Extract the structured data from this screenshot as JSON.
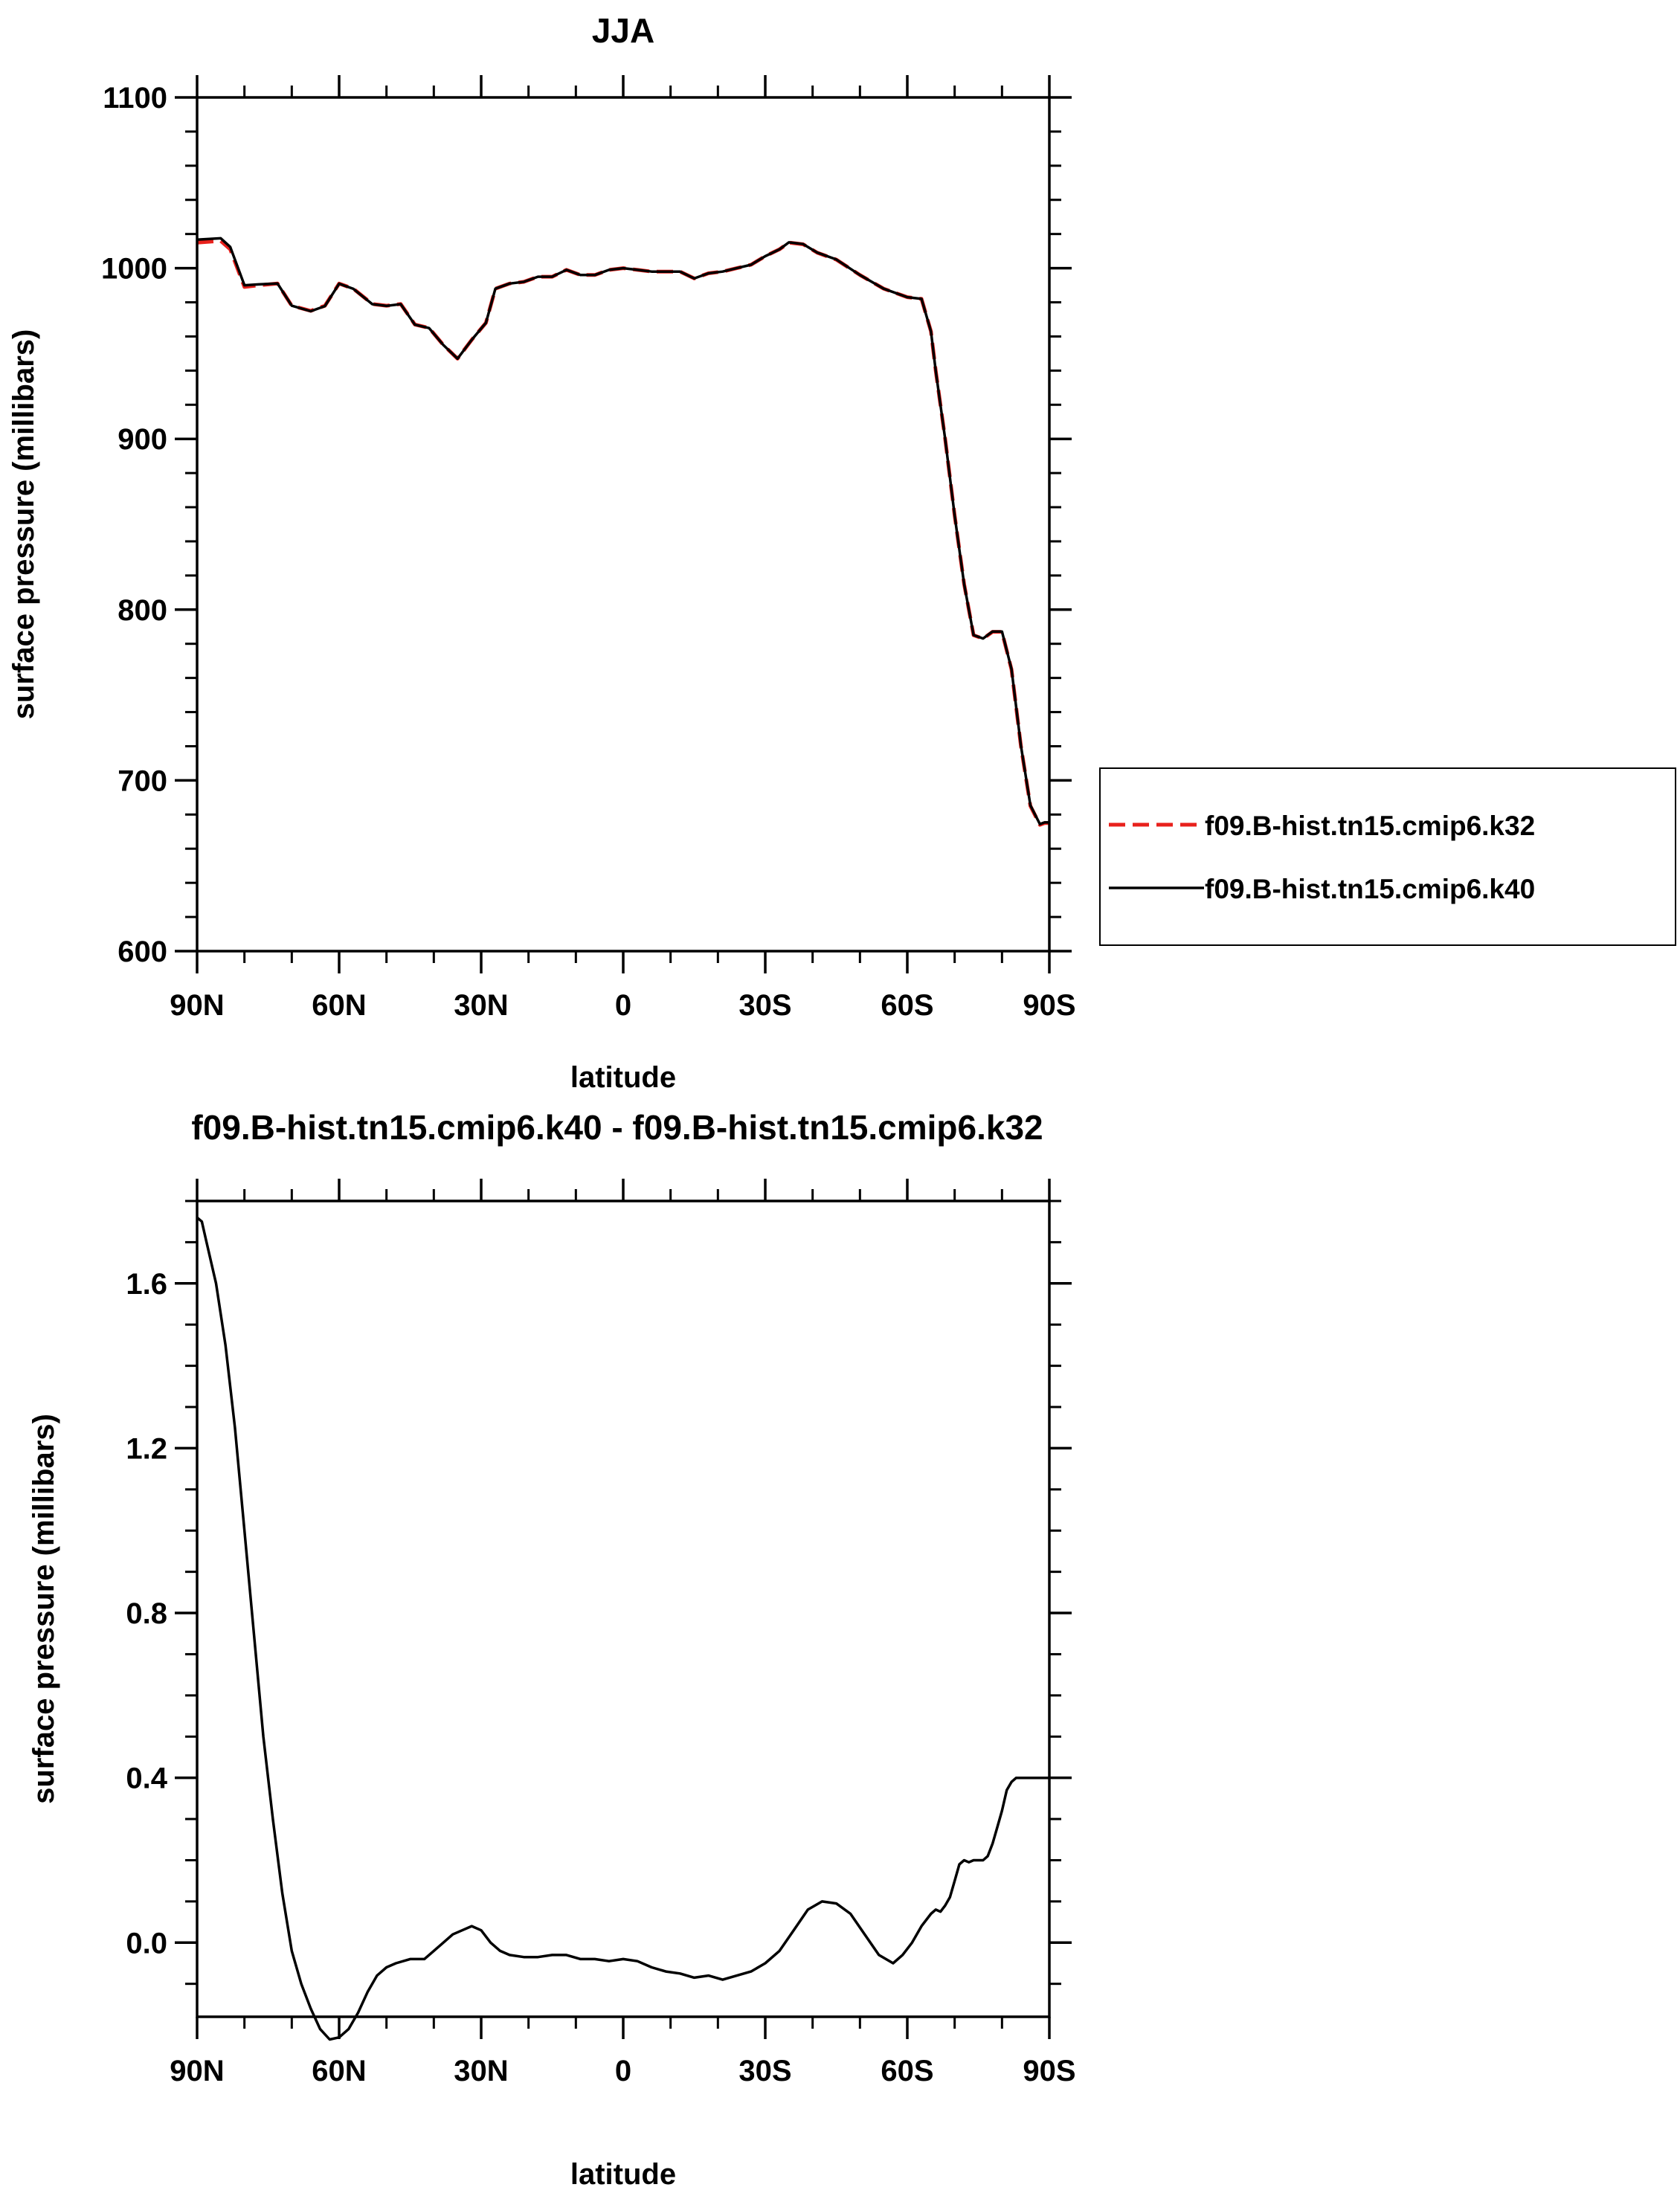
{
  "chart_data": [
    {
      "type": "line",
      "title": "JJA",
      "xlabel": "latitude",
      "ylabel": "surface pressure (millibars)",
      "xlim": [
        90,
        -90
      ],
      "ylim": [
        600,
        1100
      ],
      "x_tick_values": [
        90,
        60,
        30,
        0,
        -30,
        -60,
        -90
      ],
      "x_tick_labels": [
        "90N",
        "60N",
        "30N",
        "0",
        "30S",
        "60S",
        "90S"
      ],
      "y_tick_values": [
        600,
        700,
        800,
        900,
        1000,
        1100
      ],
      "y_tick_labels": [
        "600",
        "700",
        "800",
        "900",
        "1000",
        "1100"
      ],
      "legend_position": "right",
      "series": [
        {
          "name": "f09.B-hist.tn15.cmip6.k32",
          "color": "#e8211c",
          "dash": "dashed",
          "x": [
            90,
            85,
            83,
            80,
            77,
            73,
            70,
            66,
            63,
            60,
            57,
            53,
            50,
            47,
            44,
            41,
            38,
            35,
            32,
            29,
            27,
            24,
            21,
            18,
            15,
            12,
            9,
            6,
            3,
            0,
            -3,
            -6,
            -9,
            -12,
            -15,
            -18,
            -21,
            -24,
            -27,
            -30,
            -33,
            -35,
            -38,
            -41,
            -45,
            -50,
            -55,
            -60,
            -63,
            -65,
            -66,
            -68,
            -70,
            -72,
            -74,
            -76,
            -78,
            -80,
            -82,
            -84,
            -86,
            -88,
            -89,
            -90
          ],
          "y": [
            1015,
            1016,
            1011,
            989,
            990,
            991,
            978,
            975,
            978,
            991,
            988,
            979,
            978,
            979,
            967,
            965,
            955,
            947,
            958,
            968,
            988,
            991,
            992,
            995,
            995,
            999,
            996,
            996,
            999,
            1000,
            999,
            998,
            998,
            998,
            994,
            997,
            998,
            1000,
            1002,
            1007,
            1011,
            1015,
            1014,
            1009,
            1005,
            996,
            988,
            983,
            982,
            963,
            940,
            900,
            855,
            815,
            785,
            783,
            787,
            787,
            765,
            720,
            685,
            674,
            675,
            675
          ]
        },
        {
          "name": "f09.B-hist.tn15.cmip6.k40",
          "color": "#000000",
          "dash": "solid",
          "x": [
            90,
            85,
            83,
            80,
            77,
            73,
            70,
            66,
            63,
            60,
            57,
            53,
            50,
            47,
            44,
            41,
            38,
            35,
            32,
            29,
            27,
            24,
            21,
            18,
            15,
            12,
            9,
            6,
            3,
            0,
            -3,
            -6,
            -9,
            -12,
            -15,
            -18,
            -21,
            -24,
            -27,
            -30,
            -33,
            -35,
            -38,
            -41,
            -45,
            -50,
            -55,
            -60,
            -63,
            -65,
            -66,
            -68,
            -70,
            -72,
            -74,
            -76,
            -78,
            -80,
            -82,
            -84,
            -86,
            -88,
            -89,
            -90
          ],
          "y": [
            1016.7,
            1017.5,
            1012.4,
            990,
            990.5,
            991,
            978,
            974.8,
            977.8,
            990.9,
            987.9,
            978.9,
            977.9,
            978.9,
            966.9,
            964.9,
            955,
            947,
            958,
            968,
            988,
            991,
            992,
            995,
            995,
            999,
            996,
            996,
            999,
            1000,
            999,
            998,
            998,
            998,
            994,
            997,
            998,
            1000,
            1002,
            1007,
            1011,
            1015.1,
            1014.1,
            1009.1,
            1005.1,
            996,
            988,
            983,
            982,
            963,
            940,
            900,
            855,
            815,
            785.1,
            783.1,
            787.2,
            787.2,
            765.2,
            720.3,
            685.4,
            674.4,
            675.4,
            675.4
          ]
        }
      ]
    },
    {
      "type": "line",
      "title": "f09.B-hist.tn15.cmip6.k40 - f09.B-hist.tn15.cmip6.k32",
      "xlabel": "latitude",
      "ylabel": "surface pressure (millibars)",
      "xlim": [
        90,
        -90
      ],
      "ylim": [
        -0.18,
        1.8
      ],
      "x_tick_values": [
        90,
        60,
        30,
        0,
        -30,
        -60,
        -90
      ],
      "x_tick_labels": [
        "90N",
        "60N",
        "30N",
        "0",
        "30S",
        "60S",
        "90S"
      ],
      "y_tick_values": [
        0.0,
        0.4,
        0.8,
        1.2,
        1.6
      ],
      "y_tick_labels": [
        "0.0",
        "0.4",
        "0.8",
        "1.2",
        "1.6"
      ],
      "series": [
        {
          "color": "#000000",
          "dash": "solid",
          "x": [
            90,
            89,
            88,
            86,
            84,
            82,
            80,
            78,
            76,
            74,
            72,
            70,
            68,
            66,
            64,
            62,
            60,
            58,
            56,
            54,
            52,
            50,
            48,
            45,
            42,
            40,
            38,
            36,
            34,
            32,
            30,
            28,
            26,
            24,
            21,
            18,
            15,
            12,
            9,
            6,
            3,
            0,
            -3,
            -6,
            -9,
            -12,
            -15,
            -18,
            -21,
            -24,
            -27,
            -30,
            -33,
            -36,
            -39,
            -42,
            -45,
            -48,
            -51,
            -54,
            -57,
            -59,
            -61,
            -63,
            -65,
            -66,
            -67,
            -68,
            -69,
            -70,
            -71,
            -72,
            -73,
            -74,
            -75,
            -76,
            -77,
            -78,
            -79,
            -80,
            -81,
            -82,
            -83,
            -84,
            -85,
            -86,
            -87,
            -88,
            -89,
            -90
          ],
          "y": [
            1.76,
            1.75,
            1.7,
            1.6,
            1.45,
            1.25,
            1.0,
            0.75,
            0.5,
            0.3,
            0.12,
            -0.02,
            -0.1,
            -0.16,
            -0.21,
            -0.235,
            -0.23,
            -0.21,
            -0.17,
            -0.12,
            -0.08,
            -0.06,
            -0.05,
            -0.04,
            -0.04,
            -0.02,
            0.0,
            0.02,
            0.03,
            0.04,
            0.03,
            0.0,
            -0.02,
            -0.03,
            -0.035,
            -0.035,
            -0.03,
            -0.03,
            -0.04,
            -0.04,
            -0.045,
            -0.04,
            -0.045,
            -0.06,
            -0.07,
            -0.075,
            -0.085,
            -0.08,
            -0.09,
            -0.08,
            -0.07,
            -0.05,
            -0.02,
            0.03,
            0.08,
            0.1,
            0.095,
            0.07,
            0.02,
            -0.03,
            -0.05,
            -0.03,
            0.0,
            0.04,
            0.07,
            0.08,
            0.075,
            0.09,
            0.11,
            0.15,
            0.19,
            0.2,
            0.195,
            0.2,
            0.2,
            0.2,
            0.21,
            0.24,
            0.28,
            0.32,
            0.37,
            0.39,
            0.4,
            0.4,
            0.4,
            0.4,
            0.4,
            0.4,
            0.4,
            0.4
          ]
        }
      ]
    }
  ]
}
